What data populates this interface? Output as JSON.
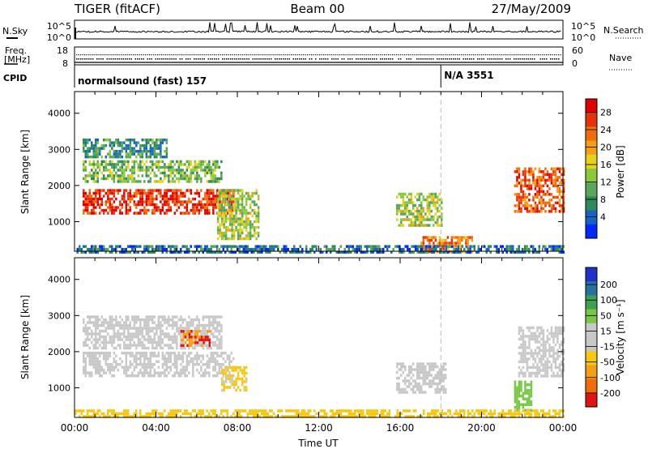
{
  "header": {
    "radar": "TIGER (fitACF)",
    "beam": "Beam 00",
    "date": "27/May/2009"
  },
  "summary_panels": {
    "nsky_label": "N.Sky",
    "nsky_ticks": [
      "10^5",
      "10^0"
    ],
    "nsearch_label": "N.Search",
    "nsearch_ticks": [
      "10^5",
      "10^0"
    ],
    "freq_label": "Freq.",
    "freq_unit": "[MHz]",
    "freq_ticks": [
      "18",
      "8"
    ],
    "nave_label": "Nave",
    "nave_ticks": [
      "60",
      "0"
    ],
    "cpid_label": "CPID",
    "cpid_segments": [
      {
        "label": "normalsound (fast) 157",
        "start_hour": 0
      },
      {
        "label": "N/A 3551",
        "start_hour": 18
      }
    ]
  },
  "chart_data": [
    {
      "type": "heatmap",
      "name": "power-panel",
      "ylabel": "Slant Range [km]",
      "xlabel": "",
      "x_range_hours": [
        0,
        24
      ],
      "ylim": [
        180,
        4600
      ],
      "yticks": [
        1000,
        2000,
        3000,
        4000
      ],
      "colorbar": {
        "label": "Power [dB]",
        "ticks": [
          "28",
          "24",
          "20",
          "16",
          "12",
          "8",
          "4"
        ],
        "colors": [
          "#0028ff",
          "#1464c8",
          "#2f8a5a",
          "#5aa65a",
          "#8cc83c",
          "#e6d21e",
          "#f5a014",
          "#f06e0a",
          "#e6320a",
          "#e10000"
        ]
      },
      "regions": [
        {
          "x": [
            0.4,
            7.8
          ],
          "range": [
            1200,
            1900
          ],
          "value": 26
        },
        {
          "x": [
            0.4,
            7.2
          ],
          "range": [
            2100,
            2700
          ],
          "value": 12
        },
        {
          "x": [
            0.4,
            4.5
          ],
          "range": [
            2800,
            3300
          ],
          "value": 8
        },
        {
          "x": [
            7.0,
            9.0
          ],
          "range": [
            500,
            1900
          ],
          "value": 14
        },
        {
          "x": [
            15.8,
            18.0
          ],
          "range": [
            900,
            1800
          ],
          "value": 14
        },
        {
          "x": [
            17.0,
            19.5
          ],
          "range": [
            200,
            600
          ],
          "value": 22
        },
        {
          "x": [
            21.6,
            24.0
          ],
          "range": [
            1300,
            2500
          ],
          "value": 24
        },
        {
          "x": [
            0.0,
            24.0
          ],
          "range": [
            180,
            350
          ],
          "value": 6
        }
      ]
    },
    {
      "type": "heatmap",
      "name": "velocity-panel",
      "ylabel": "Slant Range [km]",
      "xlabel": "Time UT",
      "x_range_hours": [
        0,
        24
      ],
      "xticks": [
        "00:00",
        "04:00",
        "08:00",
        "12:00",
        "16:00",
        "20:00",
        "00:00"
      ],
      "ylim": [
        180,
        4600
      ],
      "yticks": [
        1000,
        2000,
        3000,
        4000
      ],
      "colorbar": {
        "label": "Velocity [m s⁻¹]",
        "ticks": [
          "200",
          "100",
          "50",
          "15",
          "-15",
          "-50",
          "-100",
          "-200"
        ],
        "colors": [
          "#1e32c8",
          "#2870a0",
          "#3ca050",
          "#78c846",
          "#c8c8c8",
          "#c8c8c8",
          "#f5c814",
          "#f5a014",
          "#f06e0a",
          "#e11414"
        ]
      },
      "regions": [
        {
          "x": [
            0.4,
            7.8
          ],
          "range": [
            1300,
            2000
          ],
          "value": 0
        },
        {
          "x": [
            0.4,
            7.2
          ],
          "range": [
            2100,
            3000
          ],
          "value": 0
        },
        {
          "x": [
            5.2,
            6.6
          ],
          "range": [
            2200,
            2600
          ],
          "value": -200
        },
        {
          "x": [
            7.2,
            8.4
          ],
          "range": [
            900,
            1600
          ],
          "value": -60
        },
        {
          "x": [
            15.8,
            18.2
          ],
          "range": [
            900,
            1700
          ],
          "value": 0
        },
        {
          "x": [
            21.8,
            24.0
          ],
          "range": [
            1300,
            2700
          ],
          "value": 0
        },
        {
          "x": [
            21.6,
            22.4
          ],
          "range": [
            400,
            1200
          ],
          "value": 30
        },
        {
          "x": [
            0.0,
            24.0
          ],
          "range": [
            180,
            400
          ],
          "value": -80
        }
      ]
    }
  ],
  "colors": {
    "axis": "#000000",
    "grid_marker": "#bbbbbb"
  }
}
